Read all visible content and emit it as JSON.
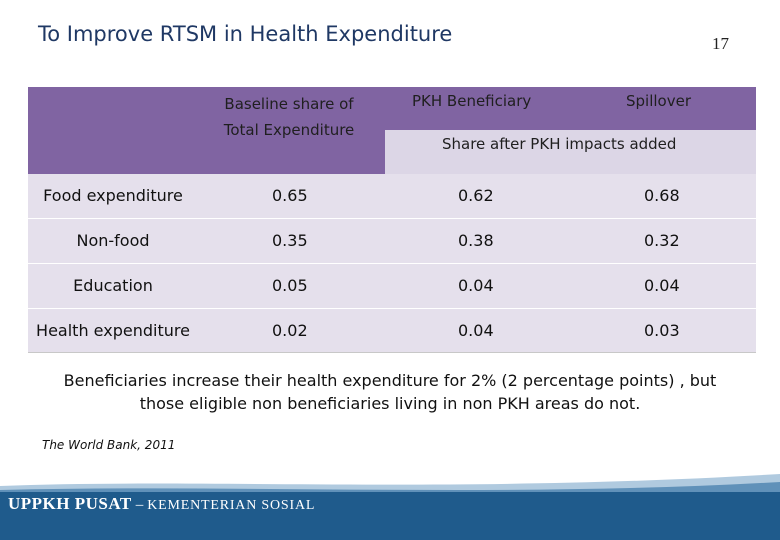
{
  "slide": {
    "title": "To Improve RTSM in Health Expenditure",
    "page_number": "17"
  },
  "table": {
    "headers": {
      "baseline": "Baseline share of Total Expenditure",
      "pkh": "PKH Beneficiary",
      "spillover": "Spillover",
      "share_after": "Share after PKH impacts added"
    },
    "rows": [
      {
        "label": "Food expenditure",
        "baseline": "0.65",
        "pkh": "0.62",
        "spillover": "0.68"
      },
      {
        "label": "Non-food",
        "baseline": "0.35",
        "pkh": "0.38",
        "spillover": "0.32"
      },
      {
        "label": "Education",
        "baseline": "0.05",
        "pkh": "0.04",
        "spillover": "0.04"
      },
      {
        "label": "Health expenditure",
        "baseline": "0.02",
        "pkh": "0.04",
        "spillover": "0.03"
      }
    ]
  },
  "note": "Beneficiaries increase their health expenditure for 2% (2 percentage points) , but those eligible non beneficiaries living in non PKH areas do not.",
  "source": "The World Bank, 2011",
  "footer": {
    "org": "UPPKH PUSAT",
    "separator": "–",
    "ministry": "KEMENTERIAN SOSIAL"
  },
  "colors": {
    "header": "#8064a2",
    "subheader": "#dcd6e6",
    "alt_row": "#e5e0ec",
    "footer": "#1f5b8c",
    "title": "#1f3864"
  }
}
